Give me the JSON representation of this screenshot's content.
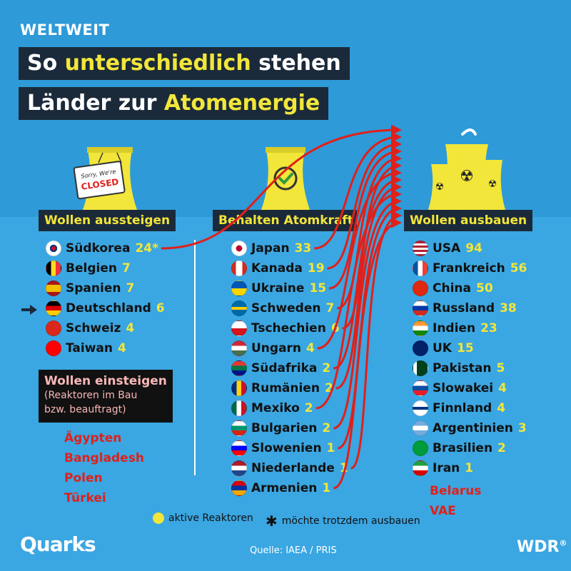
{
  "kicker": "WELTWEIT",
  "title": {
    "line1_pre": "So ",
    "line1_hl": "unterschiedlich",
    "line1_post": " stehen",
    "line2_pre": "Länder zur ",
    "line2_hl": "Atomenergie"
  },
  "closed_sign": {
    "line1": "Sorry, We're",
    "line2": "CLOSED"
  },
  "categories": {
    "out": "Wollen aussteigen",
    "keep": "Behalten Atomkraft",
    "grow": "Wollen ausbauen"
  },
  "aussteigen": [
    {
      "name": "Südkorea",
      "count": "24*",
      "flag": "kr"
    },
    {
      "name": "Belgien",
      "count": "7",
      "flag": "be"
    },
    {
      "name": "Spanien",
      "count": "7",
      "flag": "es"
    },
    {
      "name": "Deutschland",
      "count": "6",
      "flag": "de"
    },
    {
      "name": "Schweiz",
      "count": "4",
      "flag": "ch"
    },
    {
      "name": "Taiwan",
      "count": "4",
      "flag": "tw"
    }
  ],
  "behalten": [
    {
      "name": "Japan",
      "count": "33",
      "flag": "jp"
    },
    {
      "name": "Kanada",
      "count": "19",
      "flag": "ca"
    },
    {
      "name": "Ukraine",
      "count": "15",
      "flag": "ua"
    },
    {
      "name": "Schweden",
      "count": "7",
      "flag": "se"
    },
    {
      "name": "Tschechien",
      "count": "6",
      "flag": "cz"
    },
    {
      "name": "Ungarn",
      "count": "4",
      "flag": "hu"
    },
    {
      "name": "Südafrika",
      "count": "2",
      "flag": "za"
    },
    {
      "name": "Rumänien",
      "count": "2",
      "flag": "ro"
    },
    {
      "name": "Mexiko",
      "count": "2",
      "flag": "mx"
    },
    {
      "name": "Bulgarien",
      "count": "2",
      "flag": "bg"
    },
    {
      "name": "Slowenien",
      "count": "1",
      "flag": "si"
    },
    {
      "name": "Niederlande",
      "count": "1",
      "flag": "nl"
    },
    {
      "name": "Armenien",
      "count": "1",
      "flag": "am"
    }
  ],
  "ausbauen": [
    {
      "name": "USA",
      "count": "94",
      "flag": "us"
    },
    {
      "name": "Frankreich",
      "count": "56",
      "flag": "fr"
    },
    {
      "name": "China",
      "count": "50",
      "flag": "cn"
    },
    {
      "name": "Russland",
      "count": "38",
      "flag": "ru"
    },
    {
      "name": "Indien",
      "count": "23",
      "flag": "in"
    },
    {
      "name": "UK",
      "count": "15",
      "flag": "gb"
    },
    {
      "name": "Pakistan",
      "count": "5",
      "flag": "pk"
    },
    {
      "name": "Slowakei",
      "count": "4",
      "flag": "sk"
    },
    {
      "name": "Finnland",
      "count": "4",
      "flag": "fi"
    },
    {
      "name": "Argentinien",
      "count": "3",
      "flag": "ar"
    },
    {
      "name": "Brasilien",
      "count": "2",
      "flag": "br"
    },
    {
      "name": "Iran",
      "count": "1",
      "flag": "ir"
    }
  ],
  "ausbauen_extra": [
    "Belarus",
    "VAE"
  ],
  "einsteigen": {
    "heading": "Wollen einsteigen",
    "sub1": "(Reaktoren im Bau",
    "sub2": "bzw. beauftragt)",
    "countries": [
      "Ägypten",
      "Bangladesh",
      "Polen",
      "Türkei"
    ]
  },
  "legend": {
    "active": "aktive Reaktoren",
    "star": "möchte trotzdem ausbauen"
  },
  "footer": {
    "brand": "Quarks",
    "source": "Quelle: IAEA / PRIS",
    "broadcaster": "WDR",
    "reg": "®"
  },
  "colors": {
    "background": "#2e9ad8",
    "highlight": "#f2e63a",
    "arrow": "#e0201a",
    "label_bg": "#1b2a3a"
  }
}
